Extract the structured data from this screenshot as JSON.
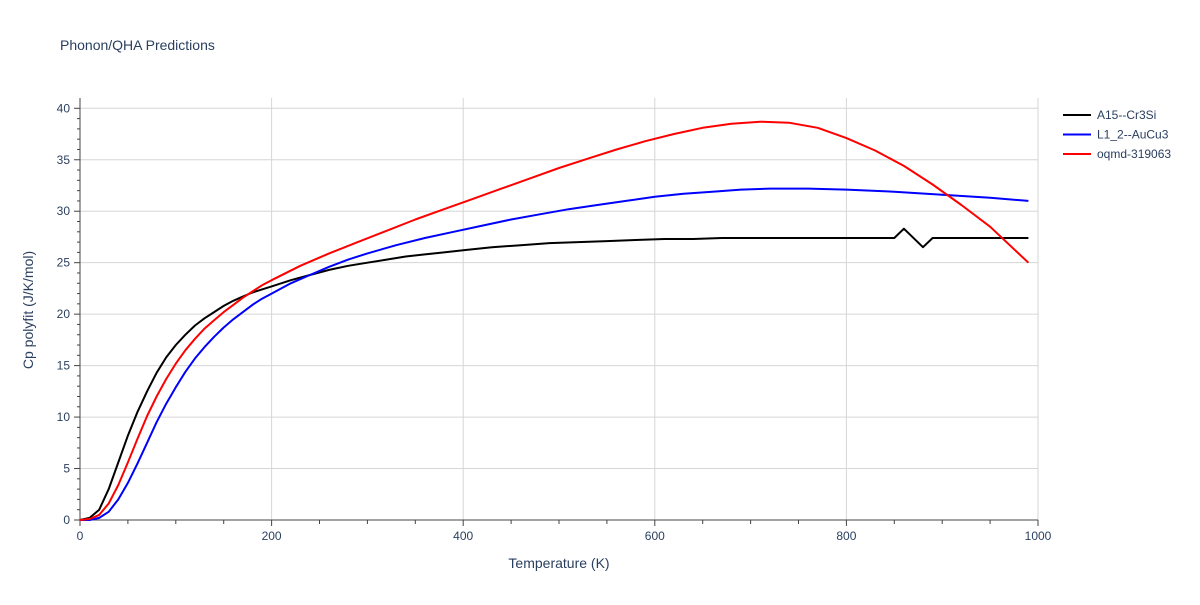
{
  "chart_data": {
    "type": "line",
    "title": "Phonon/QHA Predictions",
    "xlabel": "Temperature (K)",
    "ylabel": "Cp polyfit (J/K/mol)",
    "xlim": [
      0,
      1000
    ],
    "ylim": [
      0,
      41
    ],
    "xticks": [
      0,
      200,
      400,
      600,
      800,
      1000
    ],
    "yticks": [
      0,
      5,
      10,
      15,
      20,
      25,
      30,
      35,
      40
    ],
    "grid": true,
    "legend_position": "top-right",
    "series": [
      {
        "name": "A15--Cr3Si",
        "color": "#000000",
        "x": [
          0,
          10,
          20,
          30,
          40,
          50,
          60,
          70,
          80,
          90,
          100,
          110,
          120,
          130,
          140,
          150,
          160,
          170,
          180,
          190,
          200,
          220,
          240,
          260,
          280,
          300,
          320,
          340,
          360,
          380,
          400,
          430,
          460,
          490,
          520,
          550,
          580,
          610,
          640,
          670,
          700,
          730,
          760,
          790,
          820,
          850,
          860,
          880,
          890,
          920,
          950,
          990
        ],
        "y": [
          0,
          0.2,
          1.0,
          3.0,
          5.6,
          8.2,
          10.5,
          12.5,
          14.3,
          15.8,
          17.0,
          18.0,
          18.9,
          19.6,
          20.2,
          20.8,
          21.3,
          21.7,
          22.1,
          22.4,
          22.7,
          23.3,
          23.8,
          24.3,
          24.7,
          25.0,
          25.3,
          25.6,
          25.8,
          26.0,
          26.2,
          26.5,
          26.7,
          26.9,
          27.0,
          27.1,
          27.2,
          27.3,
          27.3,
          27.4,
          27.4,
          27.4,
          27.4,
          27.4,
          27.4,
          27.4,
          28.3,
          26.5,
          27.4,
          27.4,
          27.4,
          27.4
        ]
      },
      {
        "name": "L1_2--AuCu3",
        "color": "#0000ff",
        "x": [
          0,
          10,
          20,
          30,
          40,
          50,
          60,
          70,
          80,
          90,
          100,
          110,
          120,
          130,
          140,
          150,
          160,
          170,
          180,
          190,
          200,
          220,
          240,
          260,
          280,
          300,
          330,
          360,
          390,
          420,
          450,
          480,
          510,
          540,
          570,
          600,
          630,
          660,
          690,
          720,
          760,
          800,
          850,
          900,
          950,
          990
        ],
        "y": [
          0,
          0.0,
          0.2,
          0.8,
          2.0,
          3.6,
          5.5,
          7.5,
          9.5,
          11.3,
          12.9,
          14.4,
          15.7,
          16.8,
          17.8,
          18.7,
          19.5,
          20.2,
          20.9,
          21.5,
          22.0,
          23.0,
          23.8,
          24.6,
          25.3,
          25.9,
          26.7,
          27.4,
          28.0,
          28.6,
          29.2,
          29.7,
          30.2,
          30.6,
          31.0,
          31.4,
          31.7,
          31.9,
          32.1,
          32.2,
          32.2,
          32.1,
          31.9,
          31.6,
          31.3,
          31.0
        ]
      },
      {
        "name": "oqmd-319063",
        "color": "#ff0000",
        "x": [
          0,
          10,
          20,
          30,
          40,
          50,
          60,
          70,
          80,
          90,
          100,
          110,
          120,
          130,
          140,
          150,
          160,
          170,
          180,
          190,
          200,
          230,
          260,
          290,
          320,
          350,
          380,
          410,
          440,
          470,
          500,
          530,
          560,
          590,
          620,
          650,
          680,
          710,
          740,
          770,
          800,
          830,
          860,
          890,
          920,
          950,
          990
        ],
        "y": [
          0,
          0.1,
          0.5,
          1.6,
          3.4,
          5.6,
          7.9,
          10.1,
          12.0,
          13.7,
          15.2,
          16.5,
          17.6,
          18.6,
          19.4,
          20.2,
          20.9,
          21.6,
          22.2,
          22.8,
          23.3,
          24.7,
          25.9,
          27.0,
          28.1,
          29.2,
          30.2,
          31.2,
          32.2,
          33.2,
          34.2,
          35.1,
          36.0,
          36.8,
          37.5,
          38.1,
          38.5,
          38.7,
          38.6,
          38.1,
          37.1,
          35.9,
          34.4,
          32.6,
          30.6,
          28.5,
          25.0
        ]
      }
    ]
  }
}
